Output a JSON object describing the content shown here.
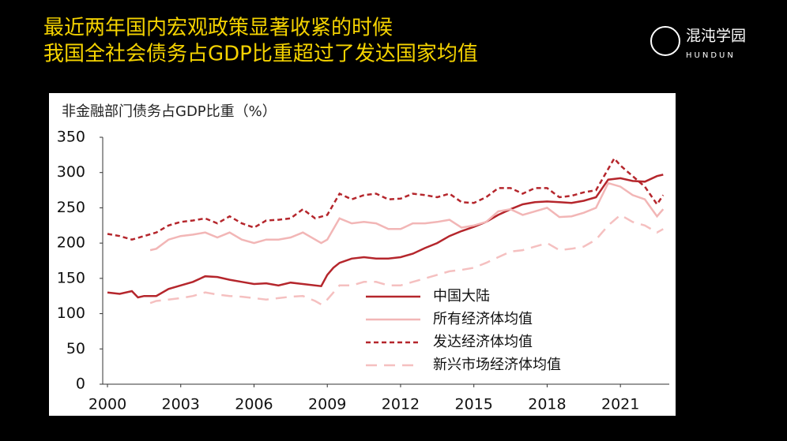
{
  "header": {
    "title_lines": [
      "最近两年国内宏观政策显著收紧的时候",
      "我国全社会债务占GDP比重超过了发达国家均值"
    ],
    "logo": "混沌学园",
    "logo_sub": "HUNDUN"
  },
  "chart_data": {
    "type": "line",
    "title": "非金融部门债务占GDP比重（%）",
    "xlim": [
      2000,
      2023
    ],
    "xticks": [
      2000,
      2003,
      2006,
      2009,
      2012,
      2015,
      2018,
      2021
    ],
    "ylim": [
      0,
      350
    ],
    "yticks": [
      0,
      50,
      100,
      150,
      200,
      250,
      300,
      350
    ],
    "series": [
      {
        "name": "中国大陆",
        "color": "#b5262c",
        "dash": "solid",
        "x": [
          2000,
          2000.5,
          2001,
          2001.25,
          2001.5,
          2002,
          2002.5,
          2003,
          2003.5,
          2004,
          2004.5,
          2005,
          2005.5,
          2006,
          2006.5,
          2007,
          2007.5,
          2008,
          2008.75,
          2009,
          2009.25,
          2009.5,
          2010,
          2010.5,
          2011,
          2011.5,
          2012,
          2012.5,
          2013,
          2013.5,
          2014,
          2014.5,
          2015,
          2015.5,
          2016,
          2016.5,
          2017,
          2017.5,
          2018,
          2018.5,
          2019,
          2019.5,
          2020,
          2020.5,
          2021,
          2021.5,
          2022,
          2022.5,
          2022.75
        ],
        "values": [
          130,
          128,
          132,
          123,
          125,
          125,
          135,
          140,
          145,
          153,
          152,
          148,
          145,
          142,
          143,
          140,
          144,
          142,
          139,
          155,
          165,
          172,
          178,
          180,
          178,
          178,
          180,
          185,
          193,
          200,
          210,
          217,
          223,
          230,
          240,
          248,
          255,
          258,
          259,
          258,
          257,
          260,
          265,
          290,
          292,
          288,
          287,
          295,
          297
        ]
      },
      {
        "name": "所有经济体均值",
        "color": "#f2b6b6",
        "dash": "solid",
        "x": [
          2001.75,
          2002,
          2002.5,
          2003,
          2003.5,
          2004,
          2004.5,
          2005,
          2005.5,
          2006,
          2006.5,
          2007,
          2007.5,
          2008,
          2008.75,
          2009,
          2009.5,
          2010,
          2010.5,
          2011,
          2011.5,
          2012,
          2012.5,
          2013,
          2013.5,
          2014,
          2014.5,
          2015,
          2015.5,
          2016,
          2016.5,
          2017,
          2017.5,
          2018,
          2018.5,
          2019,
          2019.5,
          2020,
          2020.5,
          2021,
          2021.5,
          2022,
          2022.5,
          2022.75
        ],
        "values": [
          190,
          192,
          205,
          210,
          212,
          215,
          208,
          215,
          205,
          200,
          205,
          205,
          208,
          215,
          200,
          205,
          235,
          228,
          230,
          228,
          220,
          220,
          228,
          228,
          230,
          233,
          222,
          225,
          230,
          245,
          248,
          240,
          245,
          250,
          237,
          238,
          243,
          250,
          285,
          280,
          268,
          262,
          238,
          248
        ]
      },
      {
        "name": "发达经济体均值",
        "color": "#b5262c",
        "dash": "short",
        "x": [
          2000,
          2000.5,
          2001,
          2001.5,
          2002,
          2002.5,
          2003,
          2003.5,
          2004,
          2004.5,
          2005,
          2005.5,
          2006,
          2006.5,
          2007,
          2007.5,
          2008,
          2008.5,
          2009,
          2009.5,
          2010,
          2010.5,
          2011,
          2011.5,
          2012,
          2012.5,
          2013,
          2013.5,
          2014,
          2014.5,
          2015,
          2015.5,
          2016,
          2016.5,
          2017,
          2017.5,
          2018,
          2018.5,
          2019,
          2019.5,
          2020,
          2020.5,
          2020.75,
          2021,
          2021.5,
          2022,
          2022.5,
          2022.75
        ],
        "values": [
          213,
          210,
          205,
          210,
          215,
          225,
          230,
          232,
          235,
          228,
          238,
          228,
          222,
          232,
          233,
          235,
          248,
          235,
          240,
          270,
          262,
          268,
          270,
          262,
          263,
          270,
          268,
          265,
          270,
          258,
          257,
          265,
          278,
          278,
          270,
          278,
          278,
          265,
          267,
          272,
          275,
          305,
          320,
          310,
          295,
          280,
          255,
          268
        ]
      },
      {
        "name": "新兴市场经济体均值",
        "color": "#f5c0c0",
        "dash": "long",
        "x": [
          2001.75,
          2002,
          2002.5,
          2003,
          2003.5,
          2004,
          2004.5,
          2005,
          2005.5,
          2006,
          2006.5,
          2007,
          2007.5,
          2008,
          2008.5,
          2008.75,
          2009,
          2009.5,
          2010,
          2010.5,
          2011,
          2011.5,
          2012,
          2012.5,
          2013,
          2013.5,
          2014,
          2014.5,
          2015,
          2015.5,
          2016,
          2016.5,
          2017,
          2017.5,
          2018,
          2018.5,
          2019,
          2019.5,
          2020,
          2020.5,
          2021,
          2021.5,
          2022,
          2022.5,
          2022.75
        ],
        "values": [
          115,
          118,
          120,
          122,
          125,
          130,
          127,
          125,
          124,
          122,
          120,
          122,
          124,
          125,
          118,
          113,
          120,
          140,
          140,
          145,
          145,
          140,
          140,
          145,
          150,
          155,
          160,
          162,
          165,
          172,
          180,
          188,
          190,
          195,
          200,
          190,
          192,
          195,
          205,
          225,
          240,
          230,
          225,
          215,
          220
        ]
      }
    ]
  }
}
